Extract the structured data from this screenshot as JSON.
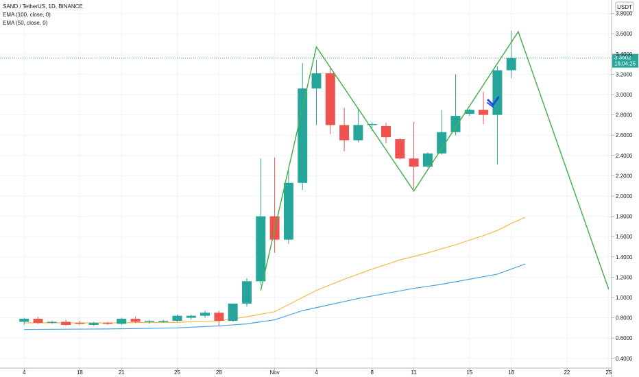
{
  "chart_data": {
    "type": "candlestick",
    "legend_lines": [
      "SAND / TetherUS, 1D, BINANCE",
      "EMA (100, close, 0)",
      "EMA (50, close, 0)"
    ],
    "currency": "USDT",
    "last_price": "3.3602",
    "countdown": "16:04:25",
    "y_ticks": [
      "3.8000",
      "3.6000",
      "3.4000",
      "3.2000",
      "3.0000",
      "2.8000",
      "2.6000",
      "2.4000",
      "2.2000",
      "2.0000",
      "1.8000",
      "1.6000",
      "1.4000",
      "1.2000",
      "1.0000",
      "0.8000",
      "0.6000",
      "0.4000"
    ],
    "ylim": [
      0.39,
      4.0
    ],
    "x_ticks": [
      {
        "label": "4",
        "i": -16
      },
      {
        "label": "18",
        "i": -12
      },
      {
        "label": "21",
        "i": -9
      },
      {
        "label": "25",
        "i": -5
      },
      {
        "label": "28",
        "i": -2
      },
      {
        "label": "Nov",
        "i": 2
      },
      {
        "label": "4",
        "i": 5
      },
      {
        "label": "8",
        "i": 9
      },
      {
        "label": "11",
        "i": 12
      },
      {
        "label": "15",
        "i": 16
      },
      {
        "label": "18",
        "i": 19
      },
      {
        "label": "22",
        "i": 23
      },
      {
        "label": "25",
        "i": 26
      }
    ],
    "candles": [
      {
        "i": -16,
        "o": 0.76,
        "h": 0.8,
        "l": 0.73,
        "c": 0.79
      },
      {
        "i": -15,
        "o": 0.79,
        "h": 0.81,
        "l": 0.74,
        "c": 0.75
      },
      {
        "i": -14,
        "o": 0.75,
        "h": 0.77,
        "l": 0.74,
        "c": 0.76
      },
      {
        "i": -13,
        "o": 0.76,
        "h": 0.78,
        "l": 0.72,
        "c": 0.73
      },
      {
        "i": -12,
        "o": 0.75,
        "h": 0.77,
        "l": 0.73,
        "c": 0.74
      },
      {
        "i": -11,
        "o": 0.73,
        "h": 0.76,
        "l": 0.72,
        "c": 0.75
      },
      {
        "i": -10,
        "o": 0.75,
        "h": 0.76,
        "l": 0.73,
        "c": 0.74
      },
      {
        "i": -9,
        "o": 0.74,
        "h": 0.8,
        "l": 0.73,
        "c": 0.79
      },
      {
        "i": -8,
        "o": 0.79,
        "h": 0.81,
        "l": 0.75,
        "c": 0.76
      },
      {
        "i": -7,
        "o": 0.76,
        "h": 0.78,
        "l": 0.74,
        "c": 0.77
      },
      {
        "i": -6,
        "o": 0.76,
        "h": 0.78,
        "l": 0.75,
        "c": 0.77
      },
      {
        "i": -5,
        "o": 0.77,
        "h": 0.83,
        "l": 0.76,
        "c": 0.82
      },
      {
        "i": -4,
        "o": 0.8,
        "h": 0.83,
        "l": 0.78,
        "c": 0.82
      },
      {
        "i": -3,
        "o": 0.82,
        "h": 0.87,
        "l": 0.8,
        "c": 0.85
      },
      {
        "i": -2,
        "o": 0.85,
        "h": 0.87,
        "l": 0.72,
        "c": 0.77
      },
      {
        "i": -1,
        "o": 0.77,
        "h": 0.94,
        "l": 0.76,
        "c": 0.94
      },
      {
        "i": 0,
        "o": 0.94,
        "h": 1.19,
        "l": 0.91,
        "c": 1.16
      },
      {
        "i": 1,
        "o": 1.16,
        "h": 2.37,
        "l": 1.12,
        "c": 1.8
      },
      {
        "i": 2,
        "o": 1.8,
        "h": 2.38,
        "l": 1.44,
        "c": 1.57
      },
      {
        "i": 3,
        "o": 1.57,
        "h": 2.25,
        "l": 1.53,
        "c": 2.13
      },
      {
        "i": 4,
        "o": 2.13,
        "h": 3.31,
        "l": 2.06,
        "c": 3.06
      },
      {
        "i": 5,
        "o": 3.06,
        "h": 3.34,
        "l": 2.7,
        "c": 3.21
      },
      {
        "i": 6,
        "o": 3.21,
        "h": 3.28,
        "l": 2.61,
        "c": 2.7
      },
      {
        "i": 7,
        "o": 2.7,
        "h": 2.87,
        "l": 2.44,
        "c": 2.55
      },
      {
        "i": 8,
        "o": 2.55,
        "h": 2.86,
        "l": 2.53,
        "c": 2.7
      },
      {
        "i": 9,
        "o": 2.7,
        "h": 2.73,
        "l": 2.64,
        "c": 2.71
      },
      {
        "i": 10,
        "o": 2.69,
        "h": 2.72,
        "l": 2.52,
        "c": 2.58
      },
      {
        "i": 11,
        "o": 2.56,
        "h": 2.57,
        "l": 2.36,
        "c": 2.37
      },
      {
        "i": 12,
        "o": 2.37,
        "h": 2.73,
        "l": 2.07,
        "c": 2.29
      },
      {
        "i": 13,
        "o": 2.29,
        "h": 2.43,
        "l": 2.28,
        "c": 2.42
      },
      {
        "i": 14,
        "o": 2.42,
        "h": 2.85,
        "l": 2.41,
        "c": 2.63
      },
      {
        "i": 15,
        "o": 2.63,
        "h": 3.2,
        "l": 2.6,
        "c": 2.79
      },
      {
        "i": 16,
        "o": 2.81,
        "h": 2.86,
        "l": 2.79,
        "c": 2.85
      },
      {
        "i": 17,
        "o": 2.85,
        "h": 3.03,
        "l": 2.71,
        "c": 2.8
      },
      {
        "i": 18,
        "o": 2.8,
        "h": 3.28,
        "l": 2.31,
        "c": 3.24
      },
      {
        "i": 19,
        "o": 3.24,
        "h": 3.63,
        "l": 3.16,
        "c": 3.36
      }
    ],
    "ema_50": [
      [
        -16,
        0.75
      ],
      [
        -10,
        0.75
      ],
      [
        -5,
        0.755
      ],
      [
        -2,
        0.77
      ],
      [
        0,
        0.81
      ],
      [
        2,
        0.86
      ],
      [
        3,
        0.93
      ],
      [
        5,
        1.07
      ],
      [
        7,
        1.18
      ],
      [
        9,
        1.28
      ],
      [
        11,
        1.37
      ],
      [
        13,
        1.44
      ],
      [
        15,
        1.52
      ],
      [
        17,
        1.61
      ],
      [
        18,
        1.66
      ],
      [
        19,
        1.73
      ],
      [
        20,
        1.79
      ]
    ],
    "ema_100": [
      [
        -16,
        0.685
      ],
      [
        -10,
        0.69
      ],
      [
        -5,
        0.7
      ],
      [
        -2,
        0.72
      ],
      [
        0,
        0.74
      ],
      [
        2,
        0.78
      ],
      [
        4,
        0.87
      ],
      [
        6,
        0.93
      ],
      [
        8,
        0.99
      ],
      [
        10,
        1.04
      ],
      [
        12,
        1.09
      ],
      [
        14,
        1.13
      ],
      [
        16,
        1.18
      ],
      [
        18,
        1.23
      ],
      [
        20,
        1.33
      ]
    ],
    "pattern_line": [
      [
        1,
        1.07
      ],
      [
        5,
        3.47
      ],
      [
        12,
        2.05
      ],
      [
        19.5,
        3.62
      ],
      [
        26,
        1.08
      ]
    ],
    "price_line": 3.3602,
    "colors": {
      "up": "#26a69a",
      "down": "#ef5350",
      "ema_50": "#f5b942",
      "ema_100": "#4aa3df",
      "pattern": "#4caf50",
      "arrow": "#1e4fd8",
      "price_label_bg": "#26a69a",
      "price_line": "#26a69a"
    }
  }
}
